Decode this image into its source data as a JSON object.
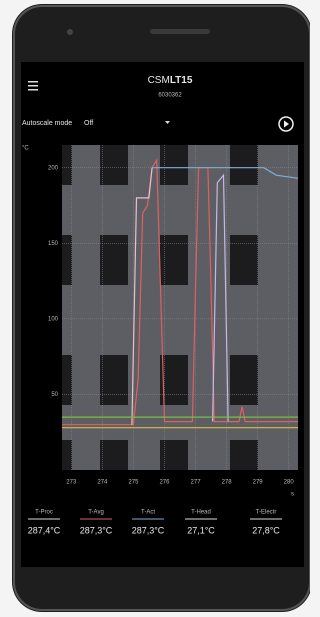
{
  "app": {
    "title_prefix": "CSM",
    "title_model": "LT15",
    "serial": "6030362"
  },
  "controls": {
    "autoscale_label": "Autoscale mode",
    "autoscale_value": "Off"
  },
  "chart_data": {
    "type": "line",
    "y_label": "°C",
    "x_label": "s",
    "xlim": [
      272.7,
      280.3
    ],
    "xticks": [
      273,
      274,
      275,
      276,
      277,
      278,
      279,
      280
    ],
    "ylim": [
      0,
      215
    ],
    "yticks": [
      50,
      100,
      150,
      200
    ],
    "grid": true,
    "series": [
      {
        "color": "#e06060",
        "x": [
          272.7,
          275.0,
          275.15,
          275.3,
          275.45,
          275.6,
          275.75,
          275.9,
          276.0,
          276.9,
          277.0,
          277.1,
          277.4,
          277.5,
          277.6,
          278.4,
          278.5,
          278.6,
          280.3
        ],
        "values": [
          30,
          30,
          60,
          170,
          175,
          200,
          205,
          100,
          32,
          32,
          120,
          200,
          200,
          120,
          32,
          32,
          42,
          32,
          32
        ]
      },
      {
        "color": "#7fb0d8",
        "x": [
          275.6,
          279.2,
          279.6,
          280.3
        ],
        "values": [
          200,
          200,
          195,
          193
        ]
      },
      {
        "color": "#e8c0d0",
        "x": [
          274.95,
          275.1,
          275.5,
          275.6
        ],
        "values": [
          30,
          180,
          180,
          200
        ]
      },
      {
        "color": "#c8b8e8",
        "x": [
          277.55,
          277.7,
          277.9,
          278.05
        ],
        "values": [
          32,
          190,
          195,
          32
        ]
      },
      {
        "color": "#7ac040",
        "x": [
          272.7,
          280.3
        ],
        "values": [
          35,
          35
        ]
      },
      {
        "color": "#d8c040",
        "x": [
          272.7,
          280.3
        ],
        "values": [
          28,
          28
        ]
      }
    ]
  },
  "readings": [
    {
      "label": "T-Proc",
      "value": "287,4°C",
      "color": "#dddddd"
    },
    {
      "label": "T-Avg",
      "value": "287,3°C",
      "color": "#e06060"
    },
    {
      "label": "T-Act",
      "value": "287,3°C",
      "color": "#7fb0d8"
    },
    {
      "label": "T-Head",
      "value": "27,1°C",
      "color": "#dddddd"
    },
    {
      "label": "T-Electr",
      "value": "27,8°C",
      "color": "#dddddd"
    }
  ]
}
